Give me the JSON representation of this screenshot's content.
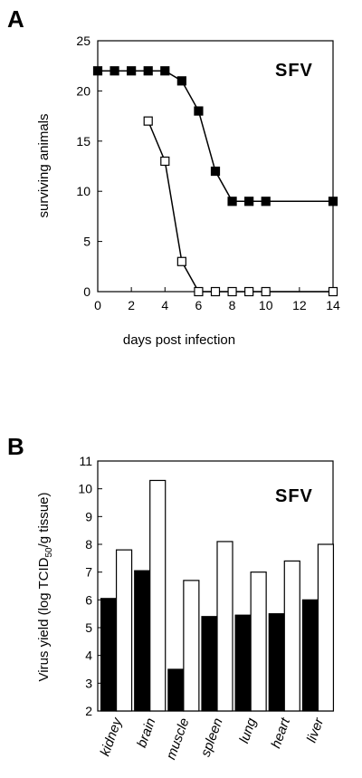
{
  "panel_a_letter": "A",
  "panel_b_letter": "B",
  "chart_data": [
    {
      "type": "line",
      "annotation": "SFV",
      "xlabel": "days post infection",
      "ylabel": "surviving animals",
      "xlim": [
        0,
        14
      ],
      "ylim": [
        0,
        25
      ],
      "xticks": [
        "0",
        "2",
        "4",
        "6",
        "8",
        "10",
        "12",
        "14"
      ],
      "yticks": [
        "0",
        "5",
        "10",
        "15",
        "20",
        "25"
      ],
      "grid": false,
      "series": [
        {
          "marker": "filled-square",
          "x": [
            0,
            1,
            2,
            3,
            4,
            5,
            6,
            7,
            8,
            9,
            10,
            14
          ],
          "y": [
            22,
            22,
            22,
            22,
            22,
            21,
            18,
            12,
            9,
            9,
            9,
            9
          ]
        },
        {
          "marker": "open-square",
          "x": [
            3,
            4,
            5,
            6,
            7,
            8,
            9,
            10,
            14
          ],
          "y": [
            17,
            13,
            3,
            0,
            0,
            0,
            0,
            0,
            0
          ]
        }
      ]
    },
    {
      "type": "bar",
      "annotation": "SFV",
      "ylabel_parts": [
        "Virus yield (log TCID",
        "50",
        "/g tissue)"
      ],
      "ylim": [
        2,
        11
      ],
      "yticks": [
        "2",
        "3",
        "4",
        "5",
        "6",
        "7",
        "8",
        "9",
        "10",
        "11"
      ],
      "categories": [
        "kidney",
        "brain",
        "muscle",
        "spleen",
        "lung",
        "heart",
        "liver"
      ],
      "grid": false,
      "series": [
        {
          "fill": "#000000",
          "values": [
            6.05,
            7.05,
            3.5,
            5.4,
            5.45,
            5.5,
            6.0
          ]
        },
        {
          "fill": "#ffffff",
          "values": [
            7.8,
            10.3,
            6.7,
            8.1,
            7.0,
            7.4,
            8.0
          ]
        }
      ]
    }
  ]
}
